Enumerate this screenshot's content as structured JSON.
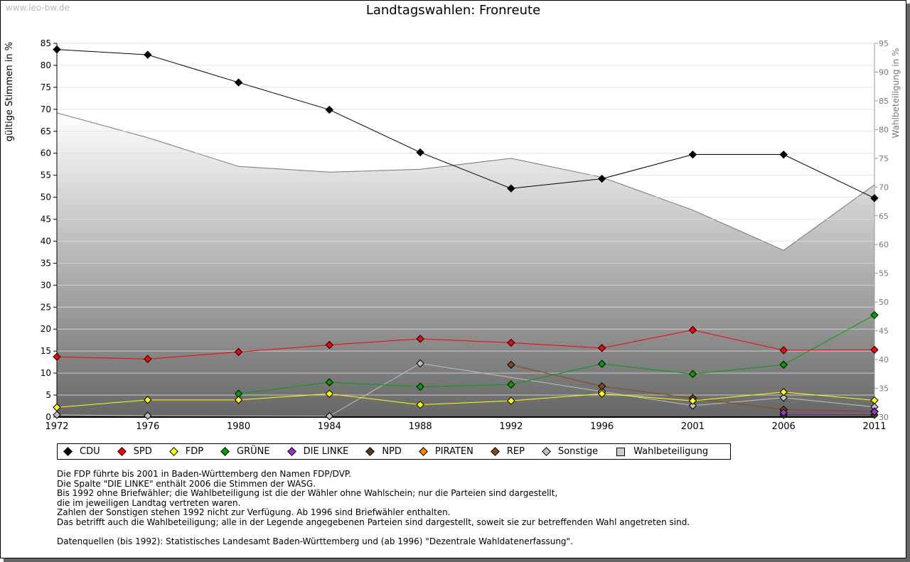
{
  "watermark": "www.leo-bw.de",
  "chart_data": {
    "type": "line",
    "title": "Landtagswahlen: Fronreute",
    "ylabel": "gültige Stimmen in %",
    "y2label": "Wahlbeteiligung in %",
    "ylim": [
      0,
      85
    ],
    "y2lim": [
      30,
      95
    ],
    "yticks": [
      0,
      5,
      10,
      15,
      20,
      25,
      30,
      35,
      40,
      45,
      50,
      55,
      60,
      65,
      70,
      75,
      80,
      85
    ],
    "y2ticks": [
      30,
      35,
      40,
      45,
      50,
      55,
      60,
      65,
      70,
      75,
      80,
      85,
      90,
      95
    ],
    "categories": [
      "1972",
      "1976",
      "1980",
      "1984",
      "1988",
      "1992",
      "1996",
      "2001",
      "2006",
      "2011"
    ],
    "grid": true,
    "legend": "bottom",
    "series": [
      {
        "name": "CDU",
        "color": "#000000",
        "values": [
          83.6,
          82.4,
          76.1,
          69.9,
          60.2,
          52.0,
          54.2,
          59.7,
          59.7,
          49.8
        ]
      },
      {
        "name": "SPD",
        "color": "#ff0000",
        "values": [
          13.7,
          13.2,
          14.8,
          16.4,
          17.8,
          16.9,
          15.7,
          19.8,
          15.2,
          15.3
        ]
      },
      {
        "name": "FDP",
        "color": "#ffff00",
        "values": [
          2.2,
          3.9,
          3.9,
          5.3,
          2.8,
          3.7,
          5.3,
          3.7,
          5.7,
          3.8
        ]
      },
      {
        "name": "GRÜNE",
        "color": "#00a000",
        "values": [
          null,
          null,
          5.3,
          7.9,
          6.9,
          7.4,
          12.1,
          9.8,
          11.9,
          23.2
        ]
      },
      {
        "name": "DIE LINKE",
        "color": "#9933cc",
        "values": [
          null,
          null,
          null,
          null,
          null,
          null,
          null,
          null,
          1.0,
          1.2
        ]
      },
      {
        "name": "NPD",
        "color": "#5a3a1a",
        "values": [
          null,
          null,
          null,
          null,
          null,
          null,
          null,
          null,
          0.5,
          0.5
        ]
      },
      {
        "name": "PIRATEN",
        "color": "#ff8000",
        "values": [
          null,
          null,
          null,
          null,
          null,
          null,
          null,
          null,
          null,
          null
        ]
      },
      {
        "name": "REP",
        "color": "#8b4513",
        "values": [
          null,
          null,
          null,
          null,
          null,
          11.9,
          7.0,
          4.3,
          1.7,
          1.3
        ]
      },
      {
        "name": "Sonstige",
        "color": "#c0c0c0",
        "values": [
          0.5,
          0.3,
          null,
          0.2,
          12.2,
          null,
          5.8,
          2.6,
          4.4,
          2.3
        ]
      }
    ],
    "turnout": {
      "name": "Wahlbeteiligung",
      "color": "#cccccc",
      "values": [
        82.9,
        78.6,
        73.6,
        72.6,
        73.1,
        75.0,
        71.7,
        66.0,
        59.0,
        70.4
      ]
    }
  },
  "notes": [
    "Die FDP führte bis 2001 in Baden-Württemberg den Namen FDP/DVP.",
    "Die Spalte \"DIE LINKE\" enthält 2006 die Stimmen der WASG.",
    "Bis 1992 ohne Briefwähler; die Wahlbeteiligung ist die der Wähler ohne Wahlschein; nur die Parteien sind dargestellt,",
    "die im jeweiligen Landtag vertreten waren.",
    "Zahlen der Sonstigen stehen 1992 nicht zur Verfügung. Ab 1996 sind Briefwähler enthalten.",
    "Das betrifft auch die Wahlbeteiligung; alle in der Legende angegebenen Parteien sind dargestellt, soweit sie zur betreffenden Wahl angetreten sind.",
    "",
    "Datenquellen (bis 1992): Statistisches Landesamt Baden-Württemberg und (ab 1996) \"Dezentrale Wahldatenerfassung\"."
  ]
}
